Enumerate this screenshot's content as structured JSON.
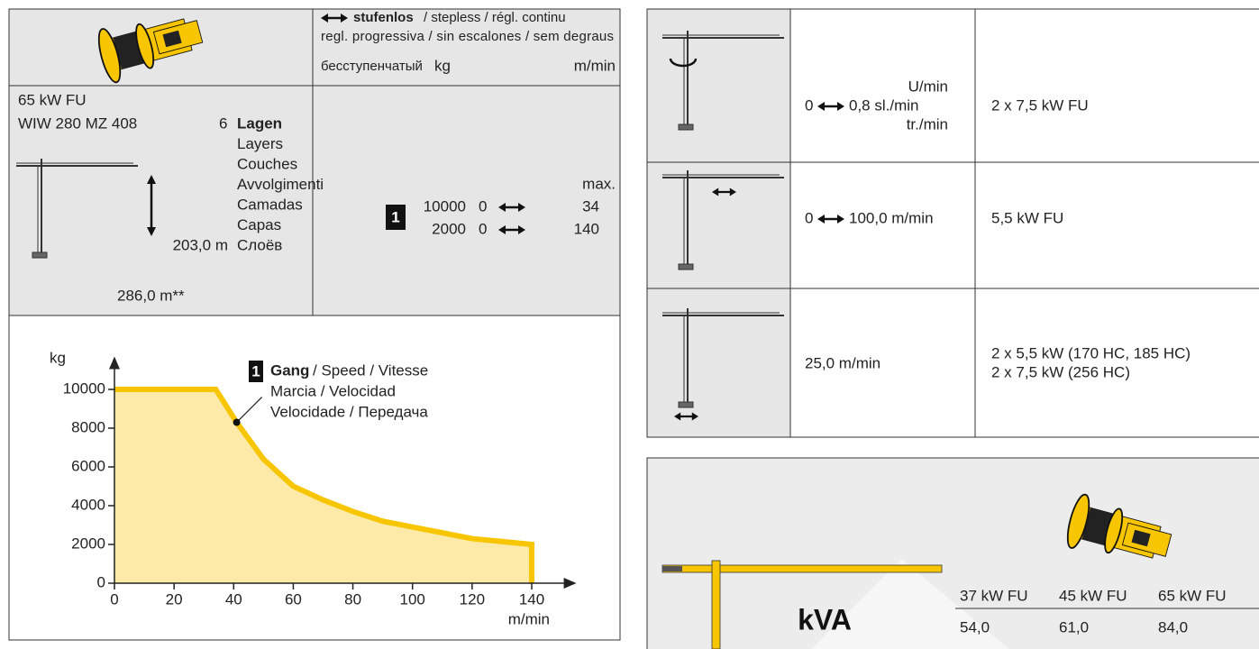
{
  "hoist": {
    "header": {
      "title_bold": "stufenlos",
      "title_rest": "/ stepless / régl. continu",
      "line2": "regl. progressiva / sin escalones / sem degraus",
      "line3": "бесступенчатый",
      "unit_load": "kg",
      "unit_speed": "m/min"
    },
    "motor": "65 kW FU",
    "winch": "WIW 280 MZ 408",
    "layers_count": "6",
    "layers": [
      "Lagen",
      "Layers",
      "Couches",
      "Avvolgimenti",
      "Camadas",
      "Capas",
      "Слоёв"
    ],
    "height": "203,0 m",
    "rope": "286,0 m**",
    "gear": "1",
    "max": "max.",
    "rows": [
      [
        "10000",
        "0",
        "34"
      ],
      [
        "2000",
        "0",
        "140"
      ]
    ]
  },
  "chart_data": {
    "type": "line",
    "ylabel": "kg",
    "xlabel": "m/min",
    "x": [
      0,
      34,
      41,
      50,
      60,
      70,
      80,
      90,
      100,
      110,
      120,
      130,
      140,
      140
    ],
    "series": [
      {
        "color": "#f7c600",
        "fill": "#fde9a8",
        "values": [
          10000,
          10000,
          8300,
          6400,
          5000,
          4300,
          3700,
          3200,
          2900,
          2600,
          2300,
          2150,
          2000,
          0
        ]
      }
    ],
    "marker_index": 2,
    "xlim": [
      0,
      155
    ],
    "ylim": [
      0,
      11700
    ],
    "xticks": [
      0,
      20,
      40,
      60,
      80,
      100,
      120,
      140
    ],
    "yticks": [
      0,
      2000,
      4000,
      6000,
      8000,
      10000
    ],
    "annotation": {
      "badge": "1",
      "bold": "Gang",
      "lines": [
        "/ Speed / Vitesse",
        "Marcia / Velocidad",
        "Velocidade / Передача"
      ]
    }
  },
  "drives": {
    "rows": [
      {
        "unit_top": "U/min",
        "speed_from": "0",
        "speed": "0,8 sl./min",
        "unit_bottom": "tr./min",
        "power": [
          "2 x 7,5 kW FU"
        ]
      },
      {
        "speed_from": "0",
        "speed": "100,0 m/min",
        "power": [
          "5,5 kW FU"
        ]
      },
      {
        "speed": "25,0 m/min",
        "power": [
          "2 x 5,5 kW (170 HC, 185 HC)",
          "2 x 7,5 kW (256 HC)"
        ]
      }
    ]
  },
  "power_supply": {
    "unit": "kVA",
    "headers": [
      "37 kW FU",
      "45 kW FU",
      "65 kW FU"
    ],
    "values": [
      "54,0",
      "61,0",
      "84,0"
    ]
  }
}
